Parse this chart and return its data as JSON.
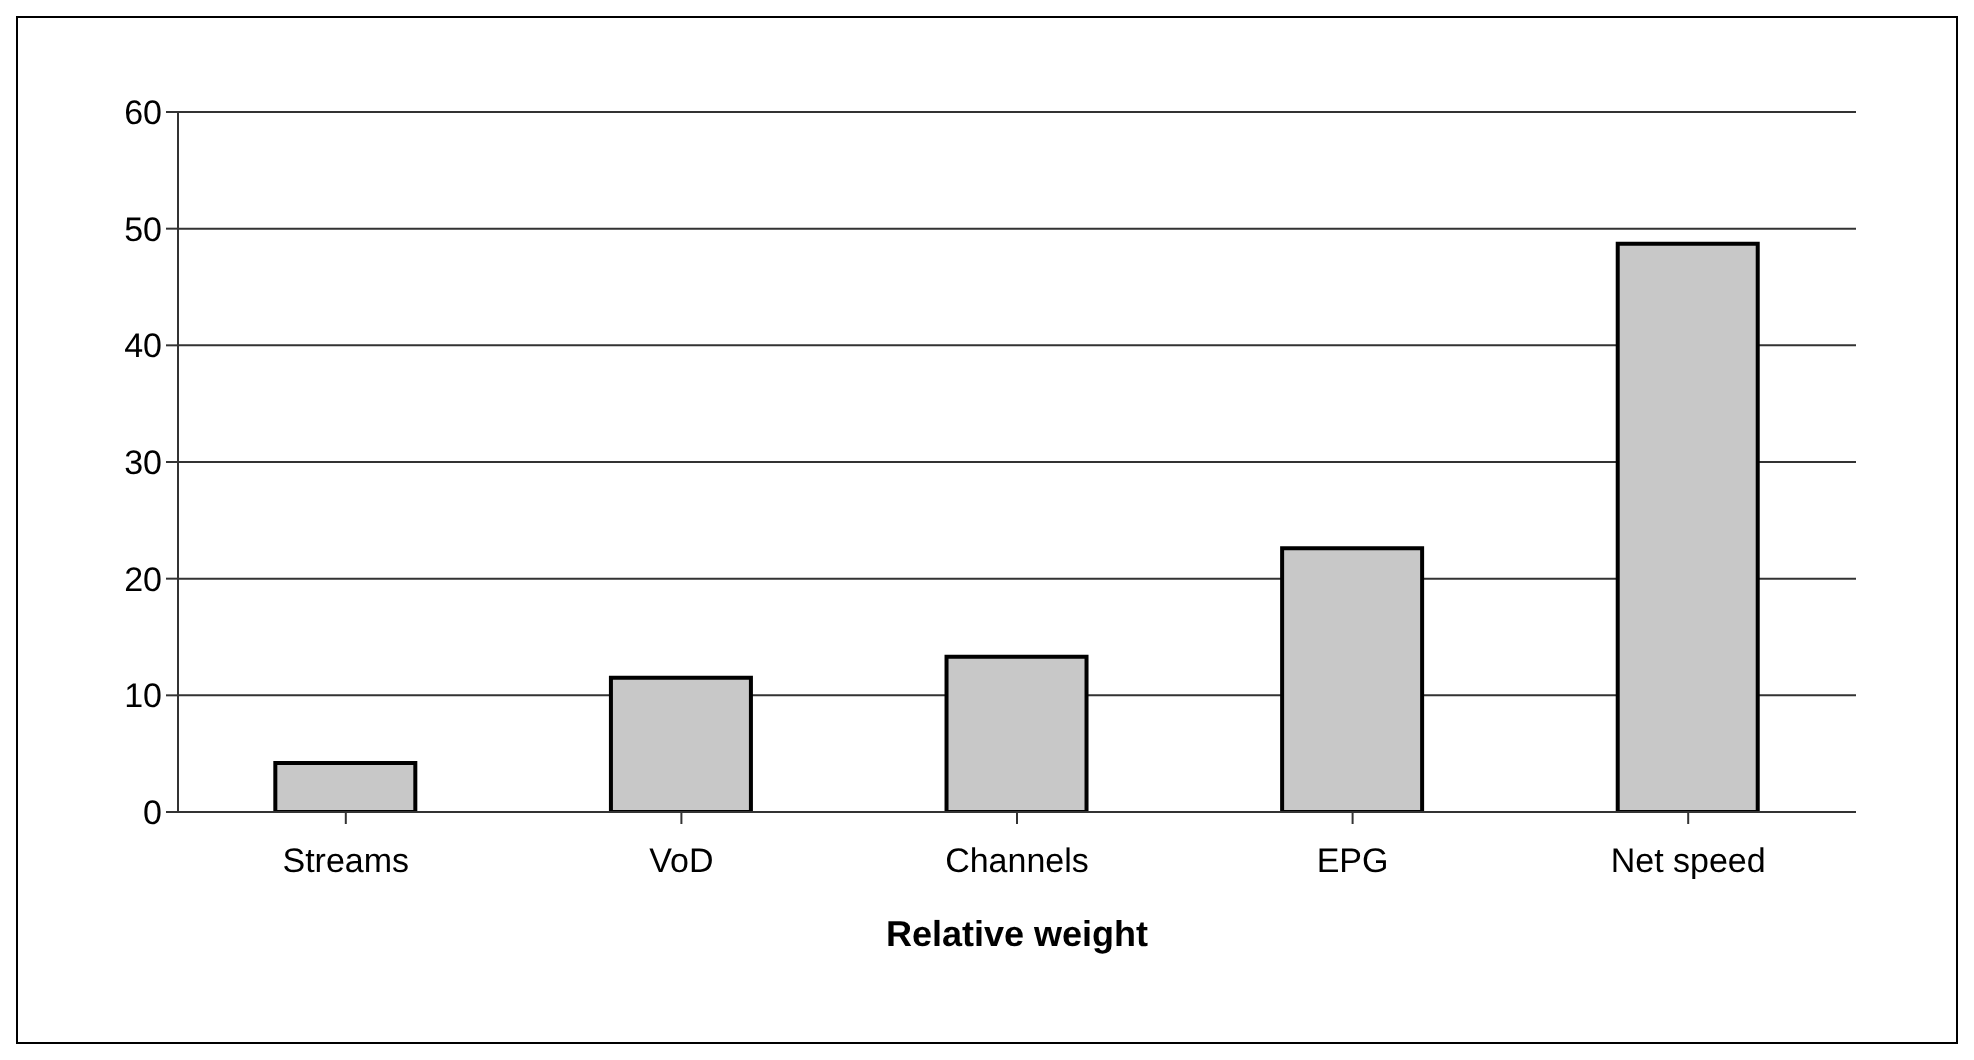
{
  "chart_data": {
    "type": "bar",
    "xlabel": "Relative weight",
    "categories": [
      "Streams",
      "VoD",
      "Channels",
      "EPG",
      "Net speed"
    ],
    "values": [
      4.2,
      11.5,
      13.3,
      22.6,
      48.7
    ],
    "color": "#c8c8c8",
    "ylim": [
      0,
      60
    ],
    "yticks": [
      0,
      10,
      20,
      30,
      40,
      50,
      60
    ],
    "grid": "y"
  }
}
